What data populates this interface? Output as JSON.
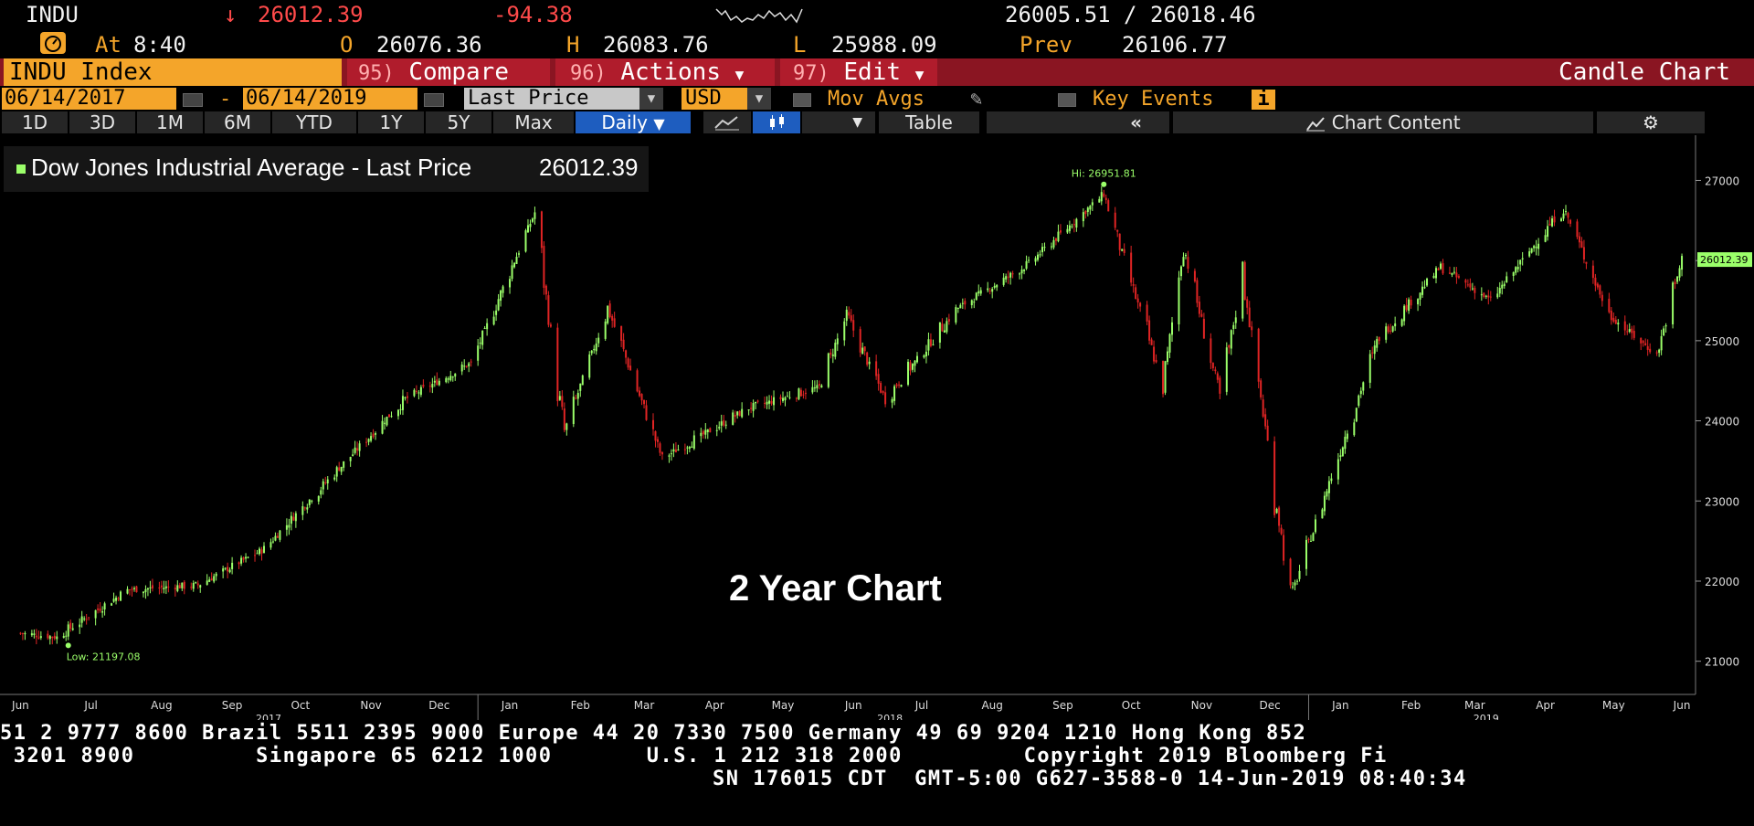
{
  "quote": {
    "ticker": "INDU",
    "arrow": "↓",
    "last": "26012.39",
    "change": "-94.38",
    "bid_ask": "26005.51 / 26018.46",
    "at_label": "At",
    "time": "8:40",
    "open_label": "O",
    "open": "26076.36",
    "high_label": "H",
    "high": "26083.76",
    "low_label": "L",
    "low": "25988.09",
    "prev_label": "Prev",
    "prev": "26106.77"
  },
  "menu": {
    "security": "INDU Index",
    "compare_num": "95)",
    "compare": "Compare",
    "actions_num": "96)",
    "actions": "Actions",
    "edit_num": "97)",
    "edit": "Edit",
    "chart_type": "Candle Chart"
  },
  "controls": {
    "start_date": "06/14/2017",
    "dash": "-",
    "end_date": "06/14/2019",
    "field": "Last Price",
    "currency": "USD",
    "mov_avgs": "Mov Avgs",
    "key_events": "Key Events",
    "info_icon": "i"
  },
  "ranges": [
    "1D",
    "3D",
    "1M",
    "6M",
    "YTD",
    "1Y",
    "5Y",
    "Max"
  ],
  "periodicity": "Daily",
  "table_label": "Table",
  "chart_content_label": "Chart Content",
  "legend_text": "Dow Jones Industrial Average - Last Price",
  "legend_value": "26012.39",
  "overlay_title": "2 Year Chart",
  "colors": {
    "up": "#9bff6a",
    "down": "#e02424",
    "amber": "#f4a52a",
    "menu_bg": "#8a1522",
    "select_blue": "#1e5dbf"
  },
  "chart_data": {
    "type": "candlestick",
    "title": "2 Year Chart",
    "series_name": "Dow Jones Industrial Average - Last Price",
    "last_price_label": "26012.39",
    "high_annotation": "Hi: 26951.81",
    "low_annotation": "Low: 21197.08",
    "ylim": [
      20700,
      27450
    ],
    "yticks": [
      21000,
      22000,
      23000,
      24000,
      25000,
      26000,
      27000
    ],
    "x_month_labels": [
      "Jun",
      "Jul",
      "Aug",
      "Sep",
      "Oct",
      "Nov",
      "Dec",
      "Jan",
      "Feb",
      "Mar",
      "Apr",
      "May",
      "Jun",
      "Jul",
      "Aug",
      "Sep",
      "Oct",
      "Nov",
      "Dec",
      "Jan",
      "Feb",
      "Mar",
      "Apr",
      "May",
      "Jun"
    ],
    "x_year_labels": [
      "2017",
      "2018",
      "2019"
    ],
    "approx_close_path": [
      {
        "date": "2017-06-14",
        "value": 21350
      },
      {
        "date": "2017-06-30",
        "value": 21300
      },
      {
        "date": "2017-07-31",
        "value": 21890
      },
      {
        "date": "2017-08-31",
        "value": 21950
      },
      {
        "date": "2017-09-29",
        "value": 22400
      },
      {
        "date": "2017-10-31",
        "value": 23380
      },
      {
        "date": "2017-11-30",
        "value": 24270
      },
      {
        "date": "2017-12-29",
        "value": 24720
      },
      {
        "date": "2018-01-26",
        "value": 26600
      },
      {
        "date": "2018-02-08",
        "value": 23860
      },
      {
        "date": "2018-02-27",
        "value": 25410
      },
      {
        "date": "2018-03-23",
        "value": 23530
      },
      {
        "date": "2018-04-30",
        "value": 24160
      },
      {
        "date": "2018-05-31",
        "value": 24420
      },
      {
        "date": "2018-06-12",
        "value": 25320
      },
      {
        "date": "2018-06-29",
        "value": 24270
      },
      {
        "date": "2018-07-31",
        "value": 25410
      },
      {
        "date": "2018-08-31",
        "value": 25960
      },
      {
        "date": "2018-10-03",
        "value": 26830
      },
      {
        "date": "2018-10-29",
        "value": 24440
      },
      {
        "date": "2018-11-07",
        "value": 26190
      },
      {
        "date": "2018-11-23",
        "value": 24290
      },
      {
        "date": "2018-12-03",
        "value": 25830
      },
      {
        "date": "2018-12-24",
        "value": 21790
      },
      {
        "date": "2019-01-31",
        "value": 24990
      },
      {
        "date": "2019-02-28",
        "value": 25920
      },
      {
        "date": "2019-03-22",
        "value": 25500
      },
      {
        "date": "2019-04-23",
        "value": 26660
      },
      {
        "date": "2019-05-13",
        "value": 25320
      },
      {
        "date": "2019-06-03",
        "value": 24820
      },
      {
        "date": "2019-06-14",
        "value": 26012
      }
    ]
  },
  "footer": {
    "line1": "51 2 9777 8600 Brazil 5511 2395 9000 Europe 44 20 7330 7500 Germany 49 69 9204 1210 Hong Kong 852",
    "line2": " 3201 8900         Singapore 65 6212 1000       U.S. 1 212 318 2000         Copyright 2019 Bloomberg Fi",
    "line3": "SN 176015 CDT  GMT-5:00 G627-3588-0 14-Jun-2019 08:40:34"
  }
}
